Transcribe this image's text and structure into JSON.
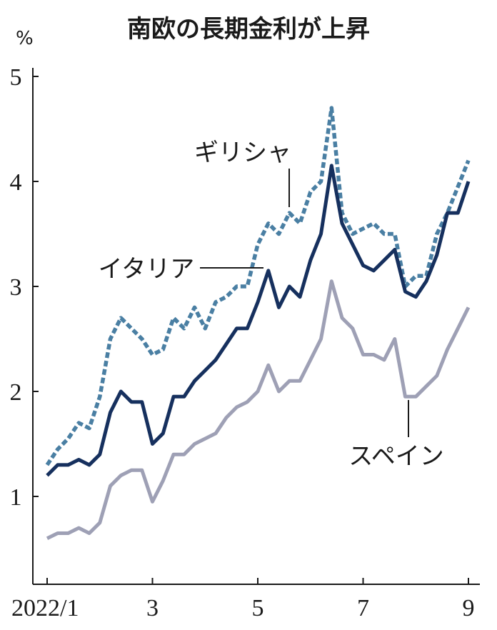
{
  "chart_data": {
    "type": "line",
    "title": "南欧の長期金利が上昇",
    "ylabel": "%",
    "ylim": [
      0,
      5
    ],
    "yticks": [
      1,
      2,
      3,
      4,
      5
    ],
    "xlim": [
      1,
      9
    ],
    "xticks": [
      {
        "value": 1,
        "label": "2022/1"
      },
      {
        "value": 3,
        "label": "3"
      },
      {
        "value": 5,
        "label": "5"
      },
      {
        "value": 7,
        "label": "7"
      },
      {
        "value": 9,
        "label": "9"
      }
    ],
    "grid": false,
    "series": [
      {
        "name": "ギリシャ",
        "color": "#4a7fa3",
        "style": "dashed",
        "x": [
          1.0,
          1.2,
          1.4,
          1.6,
          1.8,
          2.0,
          2.2,
          2.4,
          2.6,
          2.8,
          3.0,
          3.2,
          3.4,
          3.6,
          3.8,
          4.0,
          4.2,
          4.4,
          4.6,
          4.8,
          5.0,
          5.2,
          5.4,
          5.6,
          5.8,
          6.0,
          6.2,
          6.4,
          6.6,
          6.8,
          7.0,
          7.2,
          7.4,
          7.6,
          7.8,
          8.0,
          8.2,
          8.4,
          8.6,
          8.8,
          9.0
        ],
        "values": [
          1.3,
          1.45,
          1.55,
          1.7,
          1.65,
          1.95,
          2.5,
          2.7,
          2.6,
          2.5,
          2.35,
          2.4,
          2.7,
          2.6,
          2.8,
          2.6,
          2.85,
          2.9,
          3.0,
          3.0,
          3.4,
          3.6,
          3.5,
          3.7,
          3.6,
          3.9,
          4.0,
          4.7,
          3.7,
          3.5,
          3.55,
          3.6,
          3.5,
          3.5,
          3.0,
          3.1,
          3.1,
          3.5,
          3.7,
          3.95,
          4.2
        ]
      },
      {
        "name": "イタリア",
        "color": "#16305e",
        "style": "solid",
        "x": [
          1.0,
          1.2,
          1.4,
          1.6,
          1.8,
          2.0,
          2.2,
          2.4,
          2.6,
          2.8,
          3.0,
          3.2,
          3.4,
          3.6,
          3.8,
          4.0,
          4.2,
          4.4,
          4.6,
          4.8,
          5.0,
          5.2,
          5.4,
          5.6,
          5.8,
          6.0,
          6.2,
          6.4,
          6.6,
          6.8,
          7.0,
          7.2,
          7.4,
          7.6,
          7.8,
          8.0,
          8.2,
          8.4,
          8.6,
          8.8,
          9.0
        ],
        "values": [
          1.2,
          1.3,
          1.3,
          1.35,
          1.3,
          1.4,
          1.8,
          2.0,
          1.9,
          1.9,
          1.5,
          1.6,
          1.95,
          1.95,
          2.1,
          2.2,
          2.3,
          2.45,
          2.6,
          2.6,
          2.85,
          3.15,
          2.8,
          3.0,
          2.9,
          3.25,
          3.5,
          4.15,
          3.6,
          3.4,
          3.2,
          3.15,
          3.25,
          3.35,
          2.95,
          2.9,
          3.05,
          3.3,
          3.7,
          3.7,
          4.0
        ]
      },
      {
        "name": "スペイン",
        "color": "#9ea0b5",
        "style": "solid",
        "x": [
          1.0,
          1.2,
          1.4,
          1.6,
          1.8,
          2.0,
          2.2,
          2.4,
          2.6,
          2.8,
          3.0,
          3.2,
          3.4,
          3.6,
          3.8,
          4.0,
          4.2,
          4.4,
          4.6,
          4.8,
          5.0,
          5.2,
          5.4,
          5.6,
          5.8,
          6.0,
          6.2,
          6.4,
          6.6,
          6.8,
          7.0,
          7.2,
          7.4,
          7.6,
          7.8,
          8.0,
          8.2,
          8.4,
          8.6,
          8.8,
          9.0
        ],
        "values": [
          0.6,
          0.65,
          0.65,
          0.7,
          0.65,
          0.75,
          1.1,
          1.2,
          1.25,
          1.25,
          0.95,
          1.15,
          1.4,
          1.4,
          1.5,
          1.55,
          1.6,
          1.75,
          1.85,
          1.9,
          2.0,
          2.25,
          2.0,
          2.1,
          2.1,
          2.3,
          2.5,
          3.05,
          2.7,
          2.6,
          2.35,
          2.35,
          2.3,
          2.5,
          1.95,
          1.95,
          2.05,
          2.15,
          2.4,
          2.6,
          2.8
        ]
      }
    ]
  }
}
